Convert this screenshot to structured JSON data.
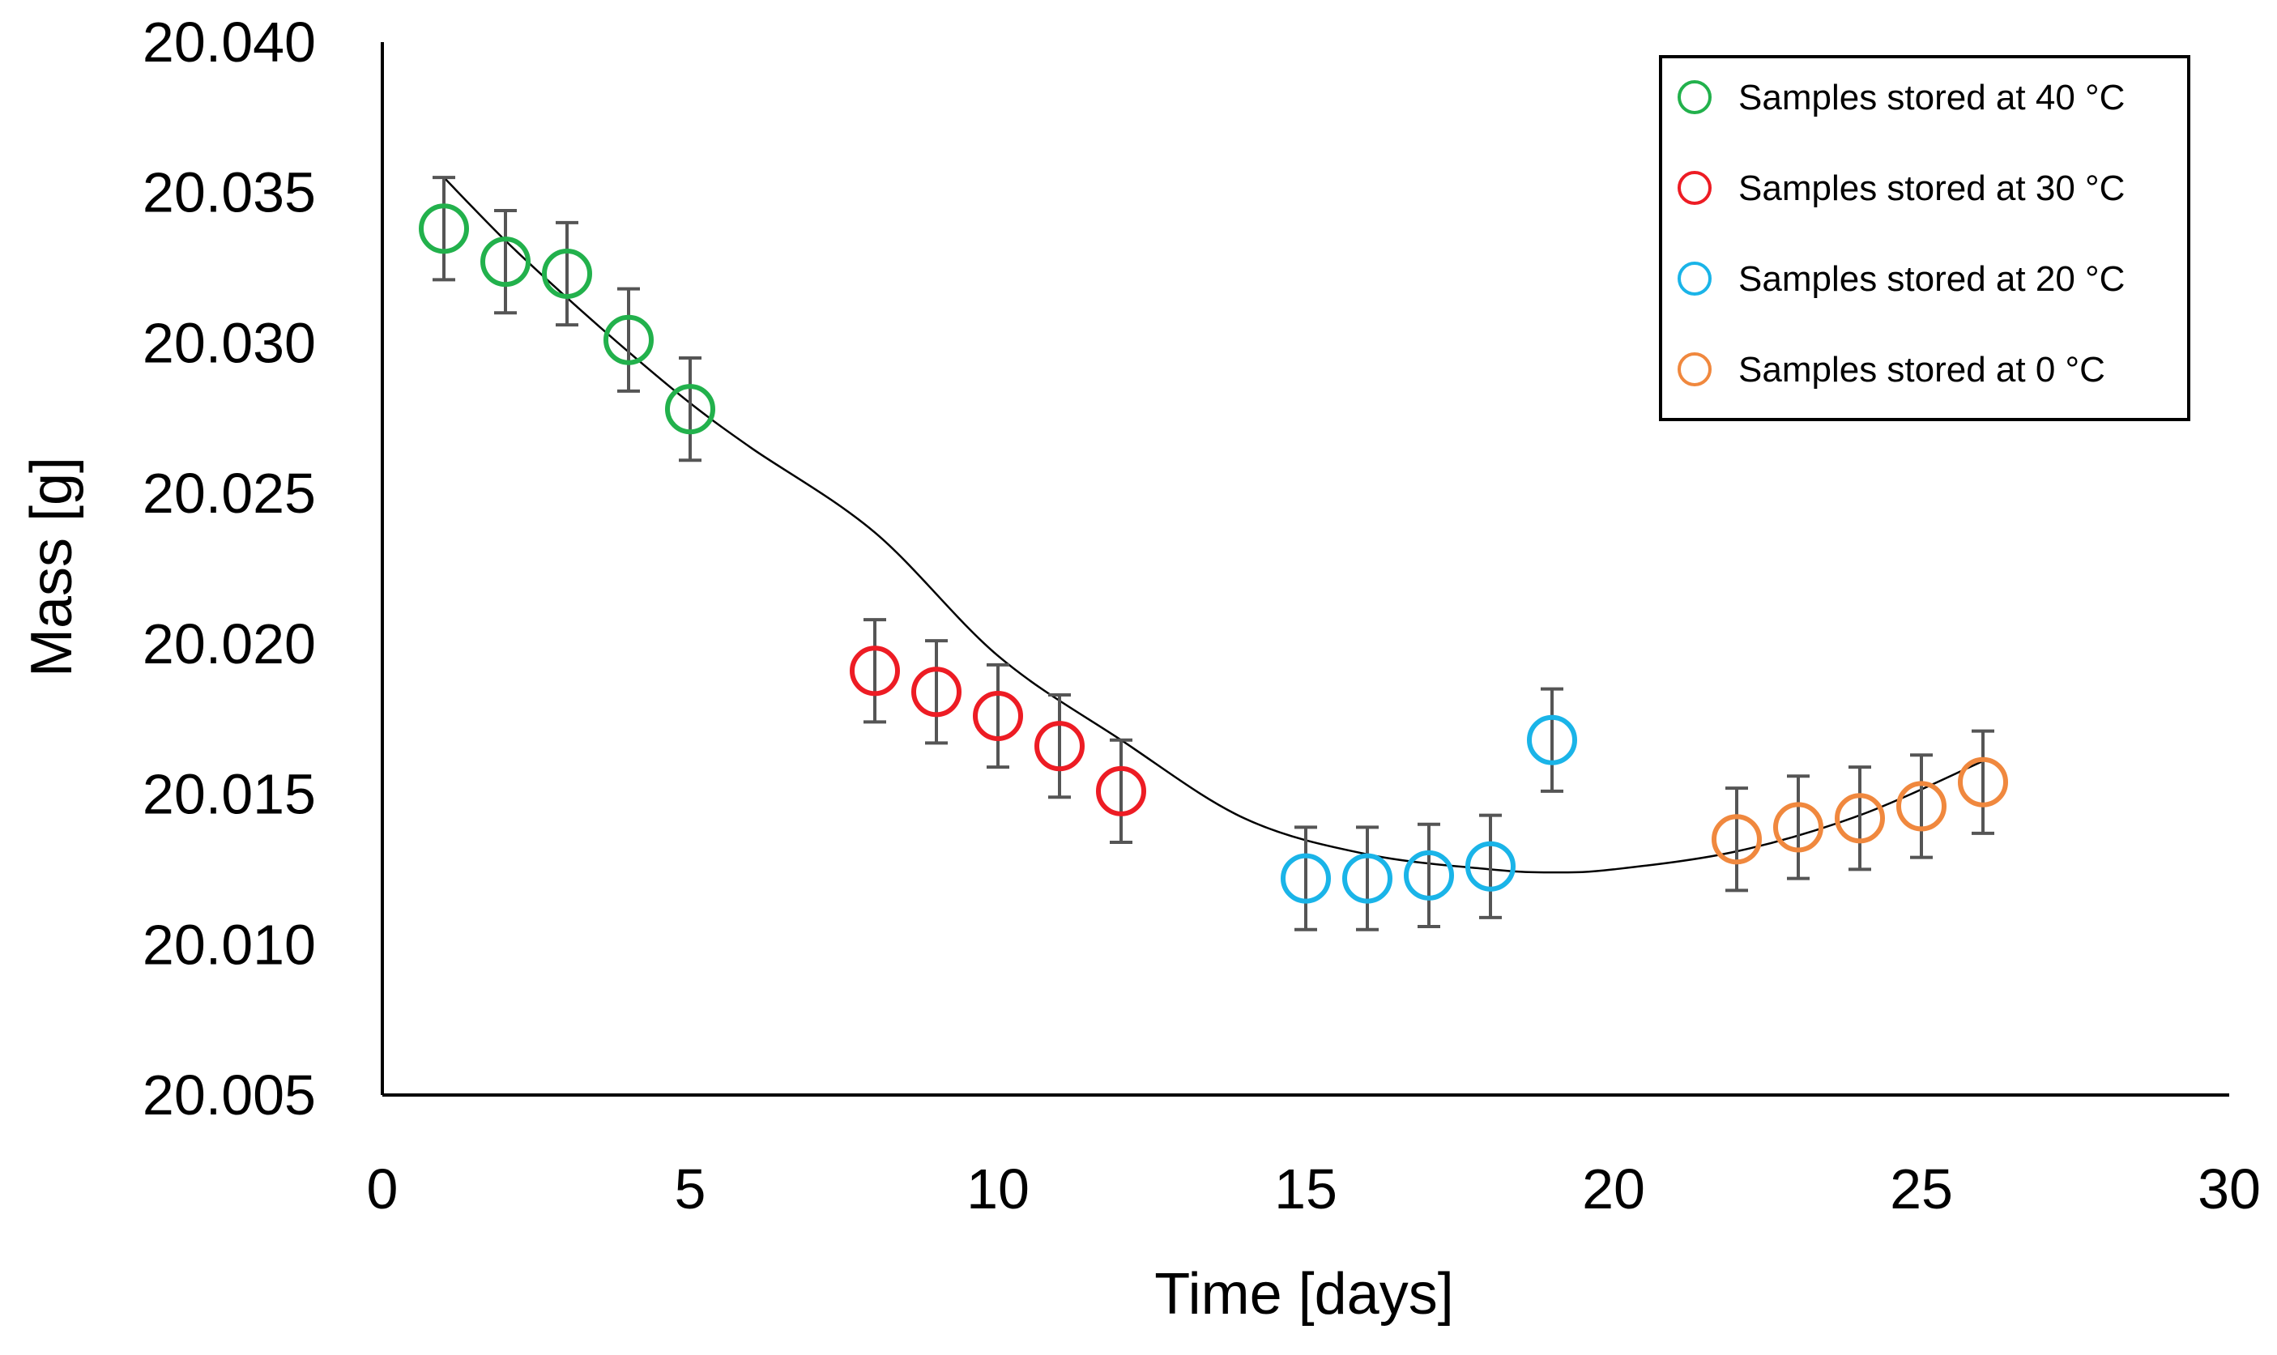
{
  "chart_data": {
    "type": "scatter",
    "title": "",
    "xlabel": "Time [days]",
    "ylabel": "Mass [g]",
    "xlim": [
      0,
      30
    ],
    "ylim": [
      20.005,
      20.04
    ],
    "xticks": [
      0,
      5,
      10,
      15,
      20,
      25,
      30
    ],
    "yticks": [
      "20.005",
      "20.010",
      "20.015",
      "20.020",
      "20.025",
      "20.030",
      "20.035",
      "20.040"
    ],
    "grid": false,
    "legend_position": "top-right",
    "error_bar": 0.0017,
    "series": [
      {
        "name": "Samples stored at 40 °C",
        "color": "#22b14c",
        "x": [
          1,
          2,
          3,
          4,
          5
        ],
        "y": [
          20.0338,
          20.0327,
          20.0323,
          20.0301,
          20.0278
        ]
      },
      {
        "name": "Samples stored at 30 °C",
        "color": "#ed1c24",
        "x": [
          8,
          9,
          10,
          11,
          12
        ],
        "y": [
          20.0191,
          20.0184,
          20.0176,
          20.0166,
          20.0151
        ]
      },
      {
        "name": "Samples stored at 20 °C",
        "color": "#1ab4e8",
        "x": [
          15,
          16,
          17,
          18,
          19
        ],
        "y": [
          20.0122,
          20.0122,
          20.0123,
          20.0126,
          20.0168
        ]
      },
      {
        "name": "Samples stored at 0 °C",
        "color": "#f0883e",
        "x": [
          22,
          23,
          24,
          25,
          26
        ],
        "y": [
          20.0135,
          20.0139,
          20.0142,
          20.0146,
          20.0154
        ]
      }
    ],
    "trendline": {
      "type": "polynomial",
      "x": [
        1,
        2,
        3,
        4,
        5,
        6,
        8,
        10,
        12,
        14,
        16,
        18,
        19,
        20,
        22,
        24,
        26
      ],
      "y": [
        20.0355,
        20.0334,
        20.0315,
        20.0297,
        20.028,
        20.0265,
        20.0237,
        20.0196,
        20.0168,
        20.0142,
        20.013,
        20.0125,
        20.0124,
        20.0125,
        20.0131,
        20.0143,
        20.0161
      ]
    }
  }
}
